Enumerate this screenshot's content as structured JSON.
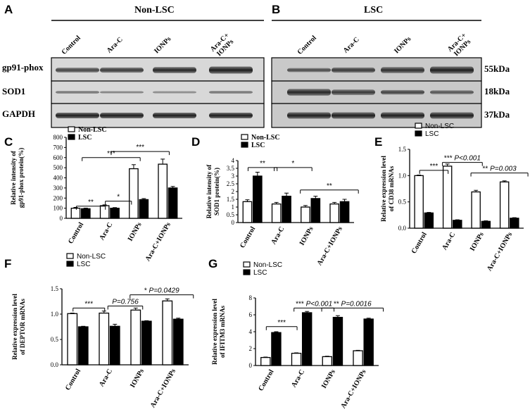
{
  "blots": {
    "A": {
      "letter": "A",
      "title": "Non-LSC",
      "lanes": [
        "Control",
        "Ara-C",
        "IONPs",
        "Ara-C+\nIONPs"
      ]
    },
    "B": {
      "letter": "B",
      "title": "LSC",
      "lanes": [
        "Control",
        "Ara-C",
        "IONPs",
        "Ara-C+\nIONPs"
      ]
    },
    "rows": [
      {
        "name": "gp91-phox",
        "kda": "55kDa"
      },
      {
        "name": "SOD1",
        "kda": "18kDa"
      },
      {
        "name": "GAPDH",
        "kda": "37kDa"
      }
    ]
  },
  "chart_data": [
    {
      "panel": "C",
      "type": "bar",
      "categories": [
        "Control",
        "Ara-C",
        "IONPs",
        "Ara-C+IONPs"
      ],
      "series": [
        {
          "name": "Non-LSC",
          "values": [
            100,
            125,
            490,
            535
          ],
          "errors": [
            8,
            8,
            40,
            50
          ]
        },
        {
          "name": "LSC",
          "values": [
            95,
            100,
            185,
            300
          ],
          "errors": [
            6,
            6,
            10,
            15
          ]
        }
      ],
      "ylabel": "Relative intensity of\ngp91-phox protein(%)",
      "ylim": [
        0,
        800
      ],
      "yticks": [
        0,
        100,
        200,
        300,
        400,
        500,
        600,
        700,
        800
      ],
      "legend": "top-left",
      "annotations": [
        {
          "text": "**"
        },
        {
          "text": "*"
        },
        {
          "text": "***"
        },
        {
          "text": "***"
        }
      ]
    },
    {
      "panel": "D",
      "type": "bar",
      "categories": [
        "Control",
        "Ara-C",
        "IONPs",
        "Ara-C+IONPs"
      ],
      "series": [
        {
          "name": "Non-LSC",
          "values": [
            1.35,
            1.2,
            1.0,
            1.2
          ],
          "errors": [
            0.12,
            0.1,
            0.1,
            0.1
          ]
        },
        {
          "name": "LSC",
          "values": [
            3.0,
            1.7,
            1.55,
            1.35
          ],
          "errors": [
            0.25,
            0.2,
            0.15,
            0.15
          ]
        }
      ],
      "ylabel": "Relative intensity of\nSOD1 protein(%)",
      "ylim": [
        0,
        4
      ],
      "yticks": [
        0,
        0.5,
        1,
        1.5,
        2,
        2.5,
        3,
        3.5,
        4
      ],
      "legend": "top",
      "annotations": [
        {
          "text": "**"
        },
        {
          "text": "*"
        },
        {
          "text": "**"
        }
      ]
    },
    {
      "panel": "E",
      "type": "bar",
      "categories": [
        "Control",
        "Ara-C",
        "IONPs",
        "Ara-C+IONPs"
      ],
      "series": [
        {
          "name": "Non-LSC",
          "values": [
            1.0,
            1.18,
            0.69,
            0.88
          ],
          "errors": [
            0.01,
            0.04,
            0.03,
            0.02
          ]
        },
        {
          "name": "LSC",
          "values": [
            0.29,
            0.15,
            0.13,
            0.19
          ],
          "errors": [
            0.01,
            0.01,
            0.01,
            0.01
          ]
        }
      ],
      "ylabel": "Relative expression level\nof CD38 mRNAs",
      "ylim": [
        0,
        1.5
      ],
      "yticks": [
        0.0,
        0.5,
        1.0,
        1.5
      ],
      "legend": "top",
      "annotations": [
        {
          "text": "***"
        },
        {
          "text": "***",
          "italic": " P<0.001"
        },
        {
          "text": "**",
          "italic": " P=0.003"
        }
      ]
    },
    {
      "panel": "F",
      "type": "bar",
      "categories": [
        "Control",
        "Ara-C",
        "IONPs",
        "Ara-C+IONPs"
      ],
      "series": [
        {
          "name": "Non-LSC",
          "values": [
            1.01,
            1.02,
            1.08,
            1.26
          ],
          "errors": [
            0.01,
            0.04,
            0.04,
            0.04
          ]
        },
        {
          "name": "LSC",
          "values": [
            0.75,
            0.76,
            0.86,
            0.9
          ],
          "errors": [
            0.01,
            0.04,
            0.01,
            0.02
          ]
        }
      ],
      "ylabel": "Relative expression level\nof DEPTOR mRNAs",
      "ylim": [
        0,
        1.5
      ],
      "yticks": [
        0.0,
        0.5,
        1.0,
        1.5
      ],
      "legend": "top-left",
      "annotations": [
        {
          "text": "***"
        },
        {
          "text": "",
          "italic": "P=0.756"
        },
        {
          "text": "*",
          "italic": " P=0.0429"
        }
      ]
    },
    {
      "panel": "G",
      "type": "bar",
      "categories": [
        "Control",
        "Ara-C",
        "IONPs",
        "Ara-C+IONPs"
      ],
      "series": [
        {
          "name": "Non-LSC",
          "values": [
            0.95,
            1.45,
            1.05,
            1.75
          ],
          "errors": [
            0.05,
            0.05,
            0.05,
            0.05
          ]
        },
        {
          "name": "LSC",
          "values": [
            3.9,
            6.25,
            5.7,
            5.5
          ],
          "errors": [
            0.1,
            0.15,
            0.2,
            0.1
          ]
        }
      ],
      "ylabel": "Relative expression level\nof IFITM3 mRNAs",
      "ylim": [
        0,
        8
      ],
      "yticks": [
        0,
        2,
        4,
        6,
        8
      ],
      "legend": "top-left",
      "annotations": [
        {
          "text": "***"
        },
        {
          "text": "***",
          "italic": " P<0.001"
        },
        {
          "text": "**",
          "italic": " P=0.0016"
        }
      ]
    }
  ]
}
